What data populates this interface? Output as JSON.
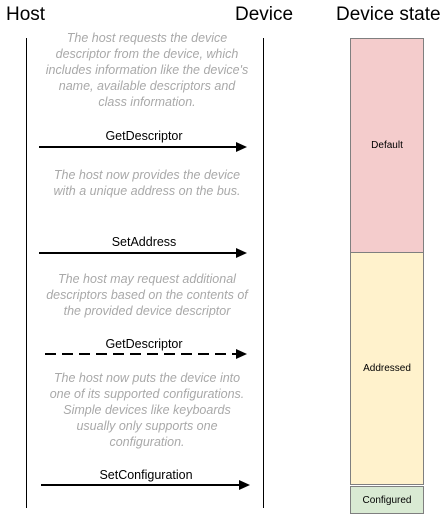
{
  "headers": {
    "host": "Host",
    "device": "Device",
    "device_state": "Device state"
  },
  "notes": [
    "The host requests the device descriptor from the device, which includes information like the device's name, available descriptors and class information.",
    "The host now provides the device with a unique address on the bus.",
    "The host may request additional descriptors based on the contents of the provided device descriptor",
    "The host now puts the device into one of its supported configurations. Simple devices like keyboards usually only supports one configuration."
  ],
  "messages": [
    {
      "label": "GetDescriptor",
      "style": "solid"
    },
    {
      "label": "SetAddress",
      "style": "solid"
    },
    {
      "label": "GetDescriptor",
      "style": "dashed"
    },
    {
      "label": "SetConfiguration",
      "style": "solid"
    }
  ],
  "states": [
    {
      "label": "Default",
      "color": "#f4cccc"
    },
    {
      "label": "Addressed",
      "color": "#fff2cc"
    },
    {
      "label": "Configured",
      "color": "#d9ead3"
    }
  ]
}
